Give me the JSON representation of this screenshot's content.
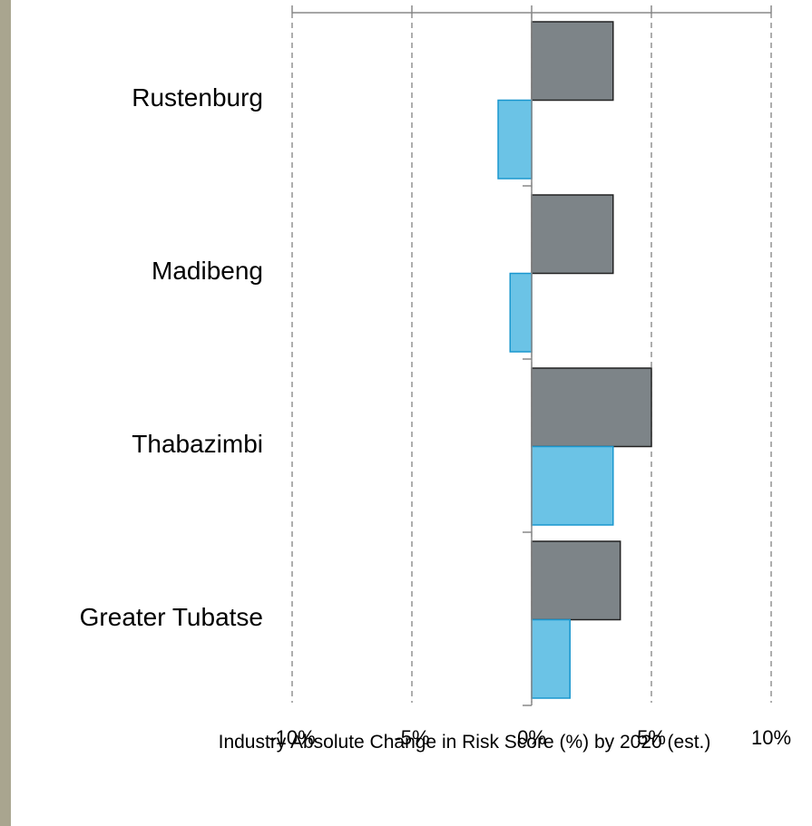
{
  "chart_data": {
    "type": "hbar",
    "x_label": "Industry Absolute Change in Risk  Score (%) by 2020 (est.)",
    "categories": [
      "Rustenburg",
      "Madibeng",
      "Thabazimbi",
      "Greater Tubatse"
    ],
    "series": [
      {
        "color": "#7d8488",
        "values": [
          3.4,
          3.4,
          5.0,
          3.7
        ]
      },
      {
        "color": "#6bc3e6",
        "values": [
          -1.4,
          -0.9,
          3.4,
          1.6
        ]
      }
    ],
    "xlim": [
      -10,
      10
    ],
    "xticks": [
      {
        "value": -10,
        "label": "-10%"
      },
      {
        "value": -5,
        "label": "-5%"
      },
      {
        "value": 0,
        "label": "0%"
      },
      {
        "value": 5,
        "label": "5%"
      },
      {
        "value": 10,
        "label": "10%"
      }
    ],
    "grid": true
  }
}
